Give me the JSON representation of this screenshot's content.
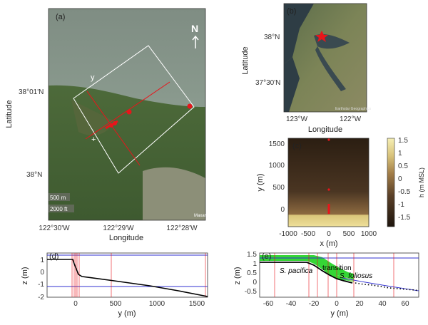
{
  "panel_a": {
    "label": "(a)",
    "ylabel": "Latitude",
    "xlabel": "Longitude",
    "lat_ticks": [
      "38°01'N",
      "38°N"
    ],
    "lon_ticks": [
      "122°30'W",
      "122°29'W",
      "122°28'W"
    ],
    "north_label": "N",
    "transect_label": "y",
    "scale_m": "500 m",
    "scale_ft": "2000 ft",
    "credit": "Maxar"
  },
  "panel_b": {
    "label": "(b)",
    "ylabel": "Latitude",
    "xlabel": "Longitude",
    "lat_ticks": [
      "38°N",
      "37°30'N"
    ],
    "lon_ticks": [
      "123°W",
      "122°W"
    ],
    "credit": "Earthstar Geographics"
  },
  "panel_c": {
    "label": "(c)",
    "ylabel": "y (m)",
    "xlabel": "x (m)",
    "xticks": [
      "-1000",
      "-500",
      "0",
      "500",
      "1000"
    ],
    "yticks": [
      "1500",
      "1000",
      "500",
      "0"
    ],
    "colorbar_label": "h (m MSL)",
    "colorbar_ticks": [
      "1.5",
      "1",
      "0.5",
      "0",
      "-0.5",
      "-1",
      "-1.5"
    ]
  },
  "panel_d": {
    "label": "(d)",
    "ylabel": "z (m)",
    "xlabel": "y (m)",
    "xticks": [
      "0",
      "500",
      "1000",
      "1500"
    ],
    "yticks": [
      "1",
      "0",
      "-1",
      "-2"
    ]
  },
  "panel_e": {
    "label": "(e)",
    "ylabel": "z (m)",
    "xlabel": "y (m)",
    "xticks": [
      "-60",
      "-40",
      "-20",
      "0",
      "20",
      "40",
      "60"
    ],
    "yticks": [
      "1.5",
      "1",
      "0.5",
      "0",
      "-0.5"
    ],
    "ann_pacifica": "S. pacifica",
    "ann_transition": "transition",
    "ann_foliosus": "S. foliosus"
  },
  "colors": {
    "sensor": "#e8151b",
    "profile": "#000000",
    "water_level": "#3030d0",
    "vegetation": "#1fd11f"
  }
}
